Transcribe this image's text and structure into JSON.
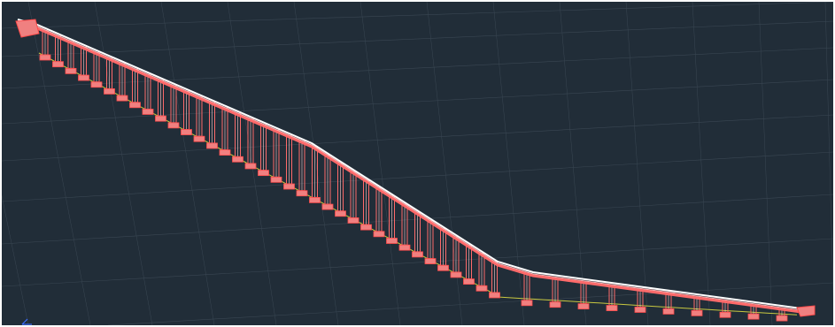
{
  "canvas": {
    "background": "#212d38",
    "grid_color": "#3a4753",
    "deck_color": "#ff6a6a",
    "deck_highlight": "#ffffff",
    "pier_cap_color": "#f08080",
    "ground_line_color": "#c8c840"
  },
  "icons": {
    "ucs": "ucs-axis-icon"
  }
}
